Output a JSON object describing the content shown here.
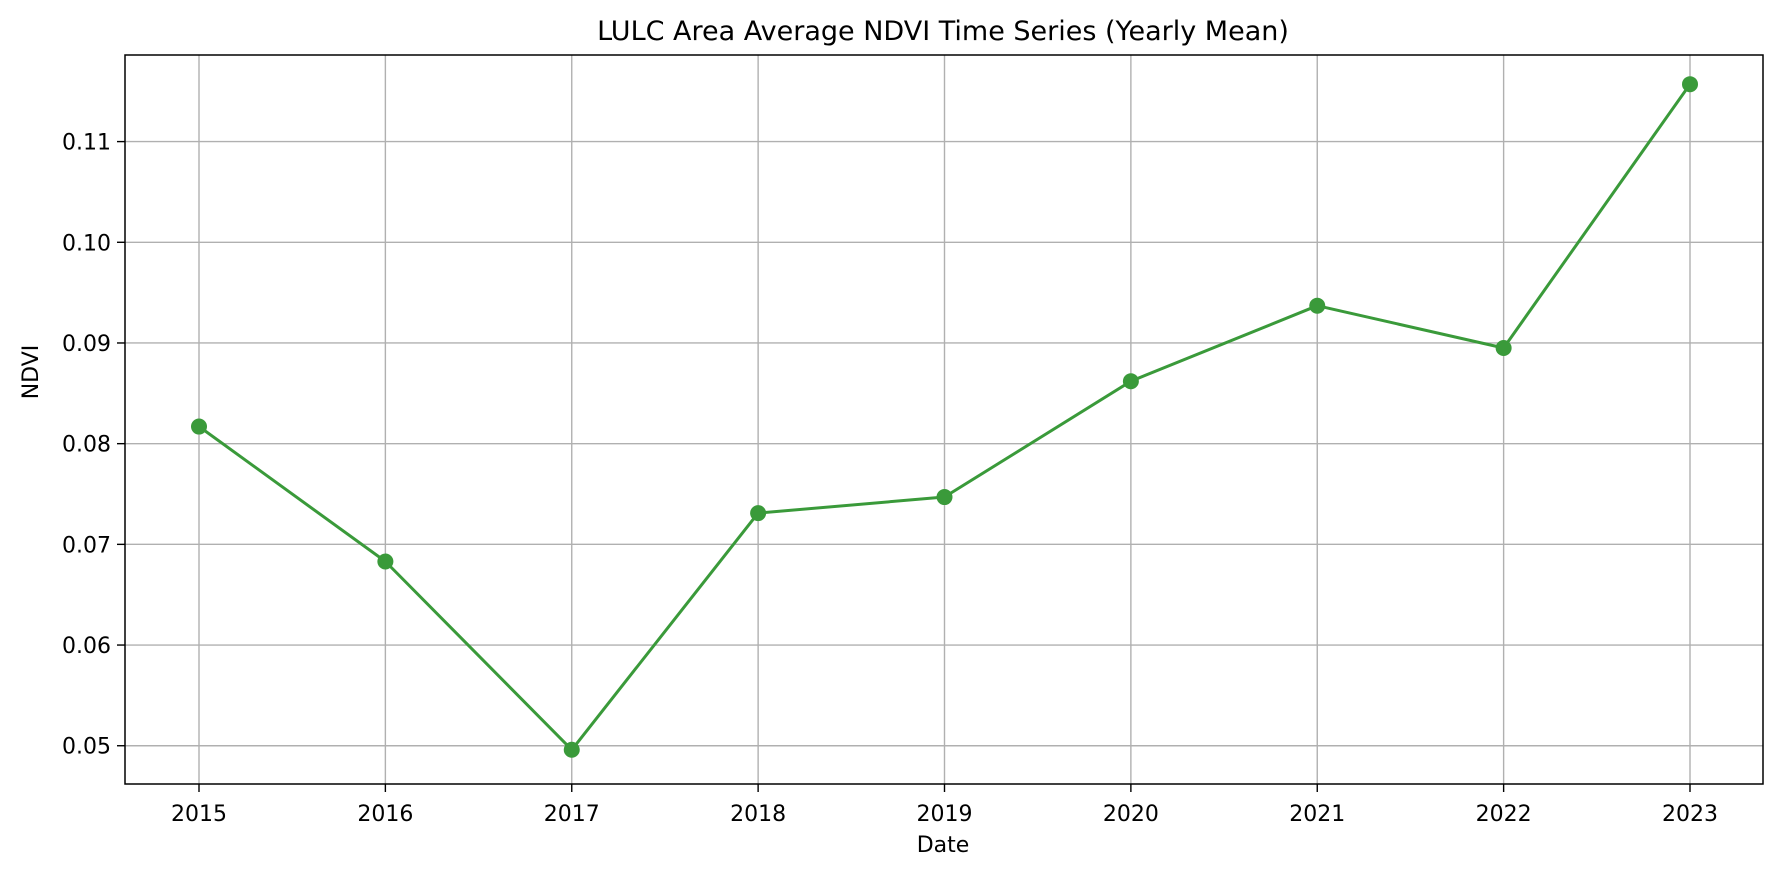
{
  "chart_data": {
    "type": "line",
    "title": "LULC Area Average NDVI Time Series (Yearly Mean)",
    "xlabel": "Date",
    "ylabel": "NDVI",
    "x": [
      "2015",
      "2016",
      "2017",
      "2018",
      "2019",
      "2020",
      "2021",
      "2022",
      "2023"
    ],
    "series": [
      {
        "values": [
          0.0817,
          0.0683,
          0.0496,
          0.0731,
          0.0747,
          0.0862,
          0.0937,
          0.0895,
          0.1157
        ],
        "color": "#3a9a3a",
        "marker": "circle"
      }
    ],
    "yticks": [
      "0.05",
      "0.06",
      "0.07",
      "0.08",
      "0.09",
      "0.10",
      "0.11"
    ],
    "ylim": [
      0.0462,
      0.1186
    ],
    "grid": true,
    "legend": "none"
  }
}
